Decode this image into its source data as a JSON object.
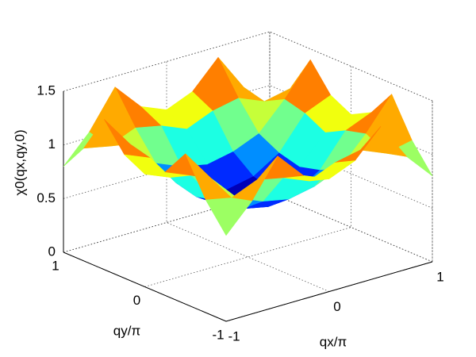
{
  "chart_data": {
    "type": "surface",
    "x_label": "qx/π",
    "y_label": "qy/π",
    "z_label": "χ0(qx,qy,0)",
    "x": [
      -1,
      -0.75,
      -0.5,
      -0.25,
      0,
      0.25,
      0.5,
      0.75,
      1
    ],
    "y": [
      -1,
      -0.75,
      -0.5,
      -0.25,
      0,
      0.25,
      0.5,
      0.75,
      1
    ],
    "z": [
      [
        0.8,
        1.05,
        1.4,
        1.15,
        1.05,
        1.15,
        1.4,
        1.05,
        0.8
      ],
      [
        1.05,
        1.0,
        1.1,
        1.05,
        0.95,
        1.05,
        1.1,
        1.0,
        1.05
      ],
      [
        1.4,
        1.1,
        0.85,
        0.75,
        0.7,
        0.75,
        0.85,
        1.1,
        1.4
      ],
      [
        1.15,
        1.05,
        0.75,
        0.6,
        0.55,
        0.6,
        0.75,
        1.05,
        1.15
      ],
      [
        1.05,
        0.95,
        0.7,
        0.55,
        0.5,
        0.55,
        0.7,
        0.95,
        1.05
      ],
      [
        1.15,
        1.05,
        0.75,
        0.6,
        0.55,
        0.6,
        0.75,
        1.05,
        1.15
      ],
      [
        1.4,
        1.1,
        0.85,
        0.75,
        0.7,
        0.75,
        0.85,
        1.1,
        1.4
      ],
      [
        1.05,
        1.0,
        1.1,
        1.05,
        0.95,
        1.05,
        1.1,
        1.0,
        1.05
      ],
      [
        0.8,
        1.05,
        1.4,
        1.15,
        1.05,
        1.15,
        1.4,
        1.05,
        0.8
      ]
    ],
    "xlim": [
      -1,
      1
    ],
    "ylim": [
      -1,
      1
    ],
    "zlim": [
      0,
      1.5
    ],
    "xticks": [
      -1,
      0,
      1
    ],
    "yticks": [
      -1,
      0,
      1
    ],
    "zticks": [
      0,
      0.5,
      1,
      1.5
    ],
    "colormap": "jet",
    "grid": true
  }
}
